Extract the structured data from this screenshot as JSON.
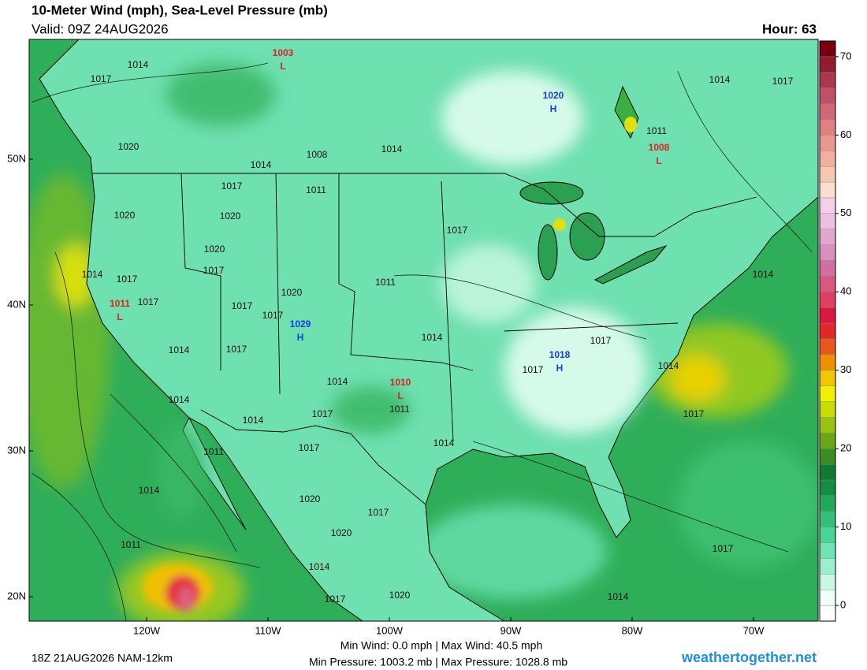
{
  "header": {
    "title": "10-Meter Wind (mph), Sea-Level Pressure (mb)",
    "valid": "Valid: 09Z 24AUG2026",
    "hour": "Hour: 63"
  },
  "colorbar": {
    "lim": [
      -2,
      72
    ],
    "ticks": [
      0,
      10,
      20,
      30,
      40,
      50,
      60,
      70
    ],
    "colors": [
      "#ffffff",
      "#f0fff8",
      "#c8f8e4",
      "#98f0cc",
      "#6ee4b0",
      "#48d494",
      "#34c07a",
      "#22a85c",
      "#148e42",
      "#0e7a34",
      "#3c8c24",
      "#68a818",
      "#98c410",
      "#c8dc08",
      "#f0f000",
      "#f0c800",
      "#f09000",
      "#e85818",
      "#e02828",
      "#d81840",
      "#e04060",
      "#d85880",
      "#d070a0",
      "#d890c0",
      "#e0a8d0",
      "#ecc0e0",
      "#f4d0e8",
      "#f8e0d0",
      "#f4c8b0",
      "#f0b0a0",
      "#e89890",
      "#e08080",
      "#d06878",
      "#c05068",
      "#a83850",
      "#901c30",
      "#780010"
    ]
  },
  "lat_ticks": [
    {
      "value": 50,
      "label": "50N"
    },
    {
      "value": 40,
      "label": "40N"
    },
    {
      "value": 30,
      "label": "30N"
    },
    {
      "value": 20,
      "label": "20N"
    }
  ],
  "lon_ticks": [
    {
      "value": -120,
      "label": "120W"
    },
    {
      "value": -110,
      "label": "110W"
    },
    {
      "value": -100,
      "label": "100W"
    },
    {
      "value": -90,
      "label": "90W"
    },
    {
      "value": -80,
      "label": "80W"
    },
    {
      "value": -70,
      "label": "70W"
    }
  ],
  "pressure_centers": [
    {
      "symbol": "L",
      "value": 1003
    },
    {
      "symbol": "H",
      "value": 1020
    },
    {
      "symbol": "L",
      "value": 1008
    },
    {
      "symbol": "L",
      "value": 1011
    },
    {
      "symbol": "H",
      "value": 1029
    },
    {
      "symbol": "H",
      "value": 1018
    },
    {
      "symbol": "L",
      "value": 1010
    }
  ],
  "isobar_labels": [
    1014,
    1017,
    1014,
    1017,
    1020,
    1014,
    1008,
    1014,
    1011,
    1017,
    1011,
    1020,
    1020,
    1017,
    1020,
    1017,
    1014,
    1017,
    1011,
    1014,
    1017,
    1020,
    1017,
    1017,
    1014,
    1014,
    1017,
    1017,
    1017,
    1014,
    1014,
    1011,
    1014,
    1017,
    1014,
    1017,
    1017,
    1014,
    1011,
    1014,
    1020,
    1017,
    1020,
    1011,
    1017,
    1014,
    1020,
    1017,
    1014
  ],
  "footer": {
    "run": "18Z 21AUG2026 NAM-12km",
    "wind_range": "Min Wind:  0.0 mph | Max Wind: 40.5 mph",
    "pressure_range": "Min Pressure: 1003.2 mb | Max Pressure: 1028.8 mb",
    "site": "weathertogether.net"
  }
}
